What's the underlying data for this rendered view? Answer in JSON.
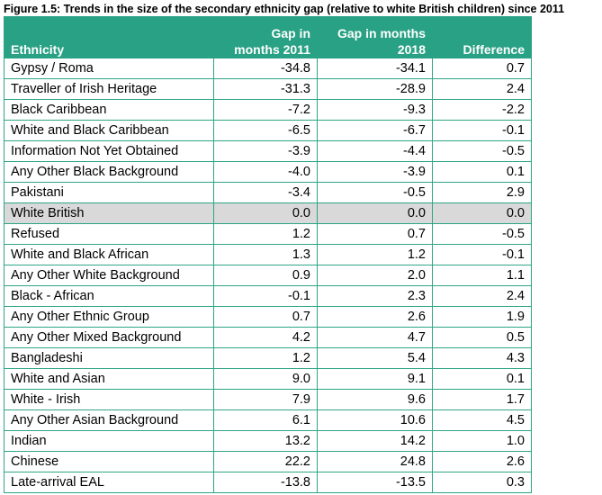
{
  "caption": "Figure 1.5: Trends in the size of the secondary ethnicity gap (relative to white British children) since 2011",
  "table": {
    "headers": {
      "ethnicity": "Ethnicity",
      "gap2011_line1": "Gap in",
      "gap2011_line2": "months 2011",
      "gap2018_line1": "Gap in months",
      "gap2018_line2": "2018",
      "difference": "Difference"
    },
    "rows": [
      {
        "ethnicity": "Gypsy / Roma",
        "gap2011": "-34.8",
        "gap2018": "-34.1",
        "difference": "0.7"
      },
      {
        "ethnicity": "Traveller of Irish Heritage",
        "gap2011": "-31.3",
        "gap2018": "-28.9",
        "difference": "2.4"
      },
      {
        "ethnicity": "Black Caribbean",
        "gap2011": "-7.2",
        "gap2018": "-9.3",
        "difference": "-2.2"
      },
      {
        "ethnicity": "White and Black Caribbean",
        "gap2011": "-6.5",
        "gap2018": "-6.7",
        "difference": "-0.1"
      },
      {
        "ethnicity": "Information Not Yet Obtained",
        "gap2011": "-3.9",
        "gap2018": "-4.4",
        "difference": "-0.5"
      },
      {
        "ethnicity": "Any Other Black Background",
        "gap2011": "-4.0",
        "gap2018": "-3.9",
        "difference": "0.1"
      },
      {
        "ethnicity": "Pakistani",
        "gap2011": "-3.4",
        "gap2018": "-0.5",
        "difference": "2.9"
      },
      {
        "ethnicity": "White British",
        "gap2011": "0.0",
        "gap2018": "0.0",
        "difference": "0.0"
      },
      {
        "ethnicity": "Refused",
        "gap2011": "1.2",
        "gap2018": "0.7",
        "difference": "-0.5"
      },
      {
        "ethnicity": "White and Black African",
        "gap2011": "1.3",
        "gap2018": "1.2",
        "difference": "-0.1"
      },
      {
        "ethnicity": "Any Other White Background",
        "gap2011": "0.9",
        "gap2018": "2.0",
        "difference": "1.1"
      },
      {
        "ethnicity": "Black - African",
        "gap2011": "-0.1",
        "gap2018": "2.3",
        "difference": "2.4"
      },
      {
        "ethnicity": "Any Other Ethnic Group",
        "gap2011": "0.7",
        "gap2018": "2.6",
        "difference": "1.9"
      },
      {
        "ethnicity": "Any Other Mixed Background",
        "gap2011": "4.2",
        "gap2018": "4.7",
        "difference": "0.5"
      },
      {
        "ethnicity": "Bangladeshi",
        "gap2011": "1.2",
        "gap2018": "5.4",
        "difference": "4.3"
      },
      {
        "ethnicity": "White and Asian",
        "gap2011": "9.0",
        "gap2018": "9.1",
        "difference": "0.1"
      },
      {
        "ethnicity": "White - Irish",
        "gap2011": "7.9",
        "gap2018": "9.6",
        "difference": "1.7"
      },
      {
        "ethnicity": "Any Other Asian Background",
        "gap2011": "6.1",
        "gap2018": "10.6",
        "difference": "4.5"
      },
      {
        "ethnicity": "Indian",
        "gap2011": "13.2",
        "gap2018": "14.2",
        "difference": "1.0"
      },
      {
        "ethnicity": "Chinese",
        "gap2011": "22.2",
        "gap2018": "24.8",
        "difference": "2.6"
      },
      {
        "ethnicity": "Late-arrival EAL",
        "gap2011": "-13.8",
        "gap2018": "-13.5",
        "difference": "0.3"
      }
    ],
    "highlight_row": "White British"
  },
  "colors": {
    "header_bg": "#29a184",
    "header_text": "#ffffff",
    "grid_line": "#2ea585",
    "highlight_bg": "#d9d9d9"
  }
}
